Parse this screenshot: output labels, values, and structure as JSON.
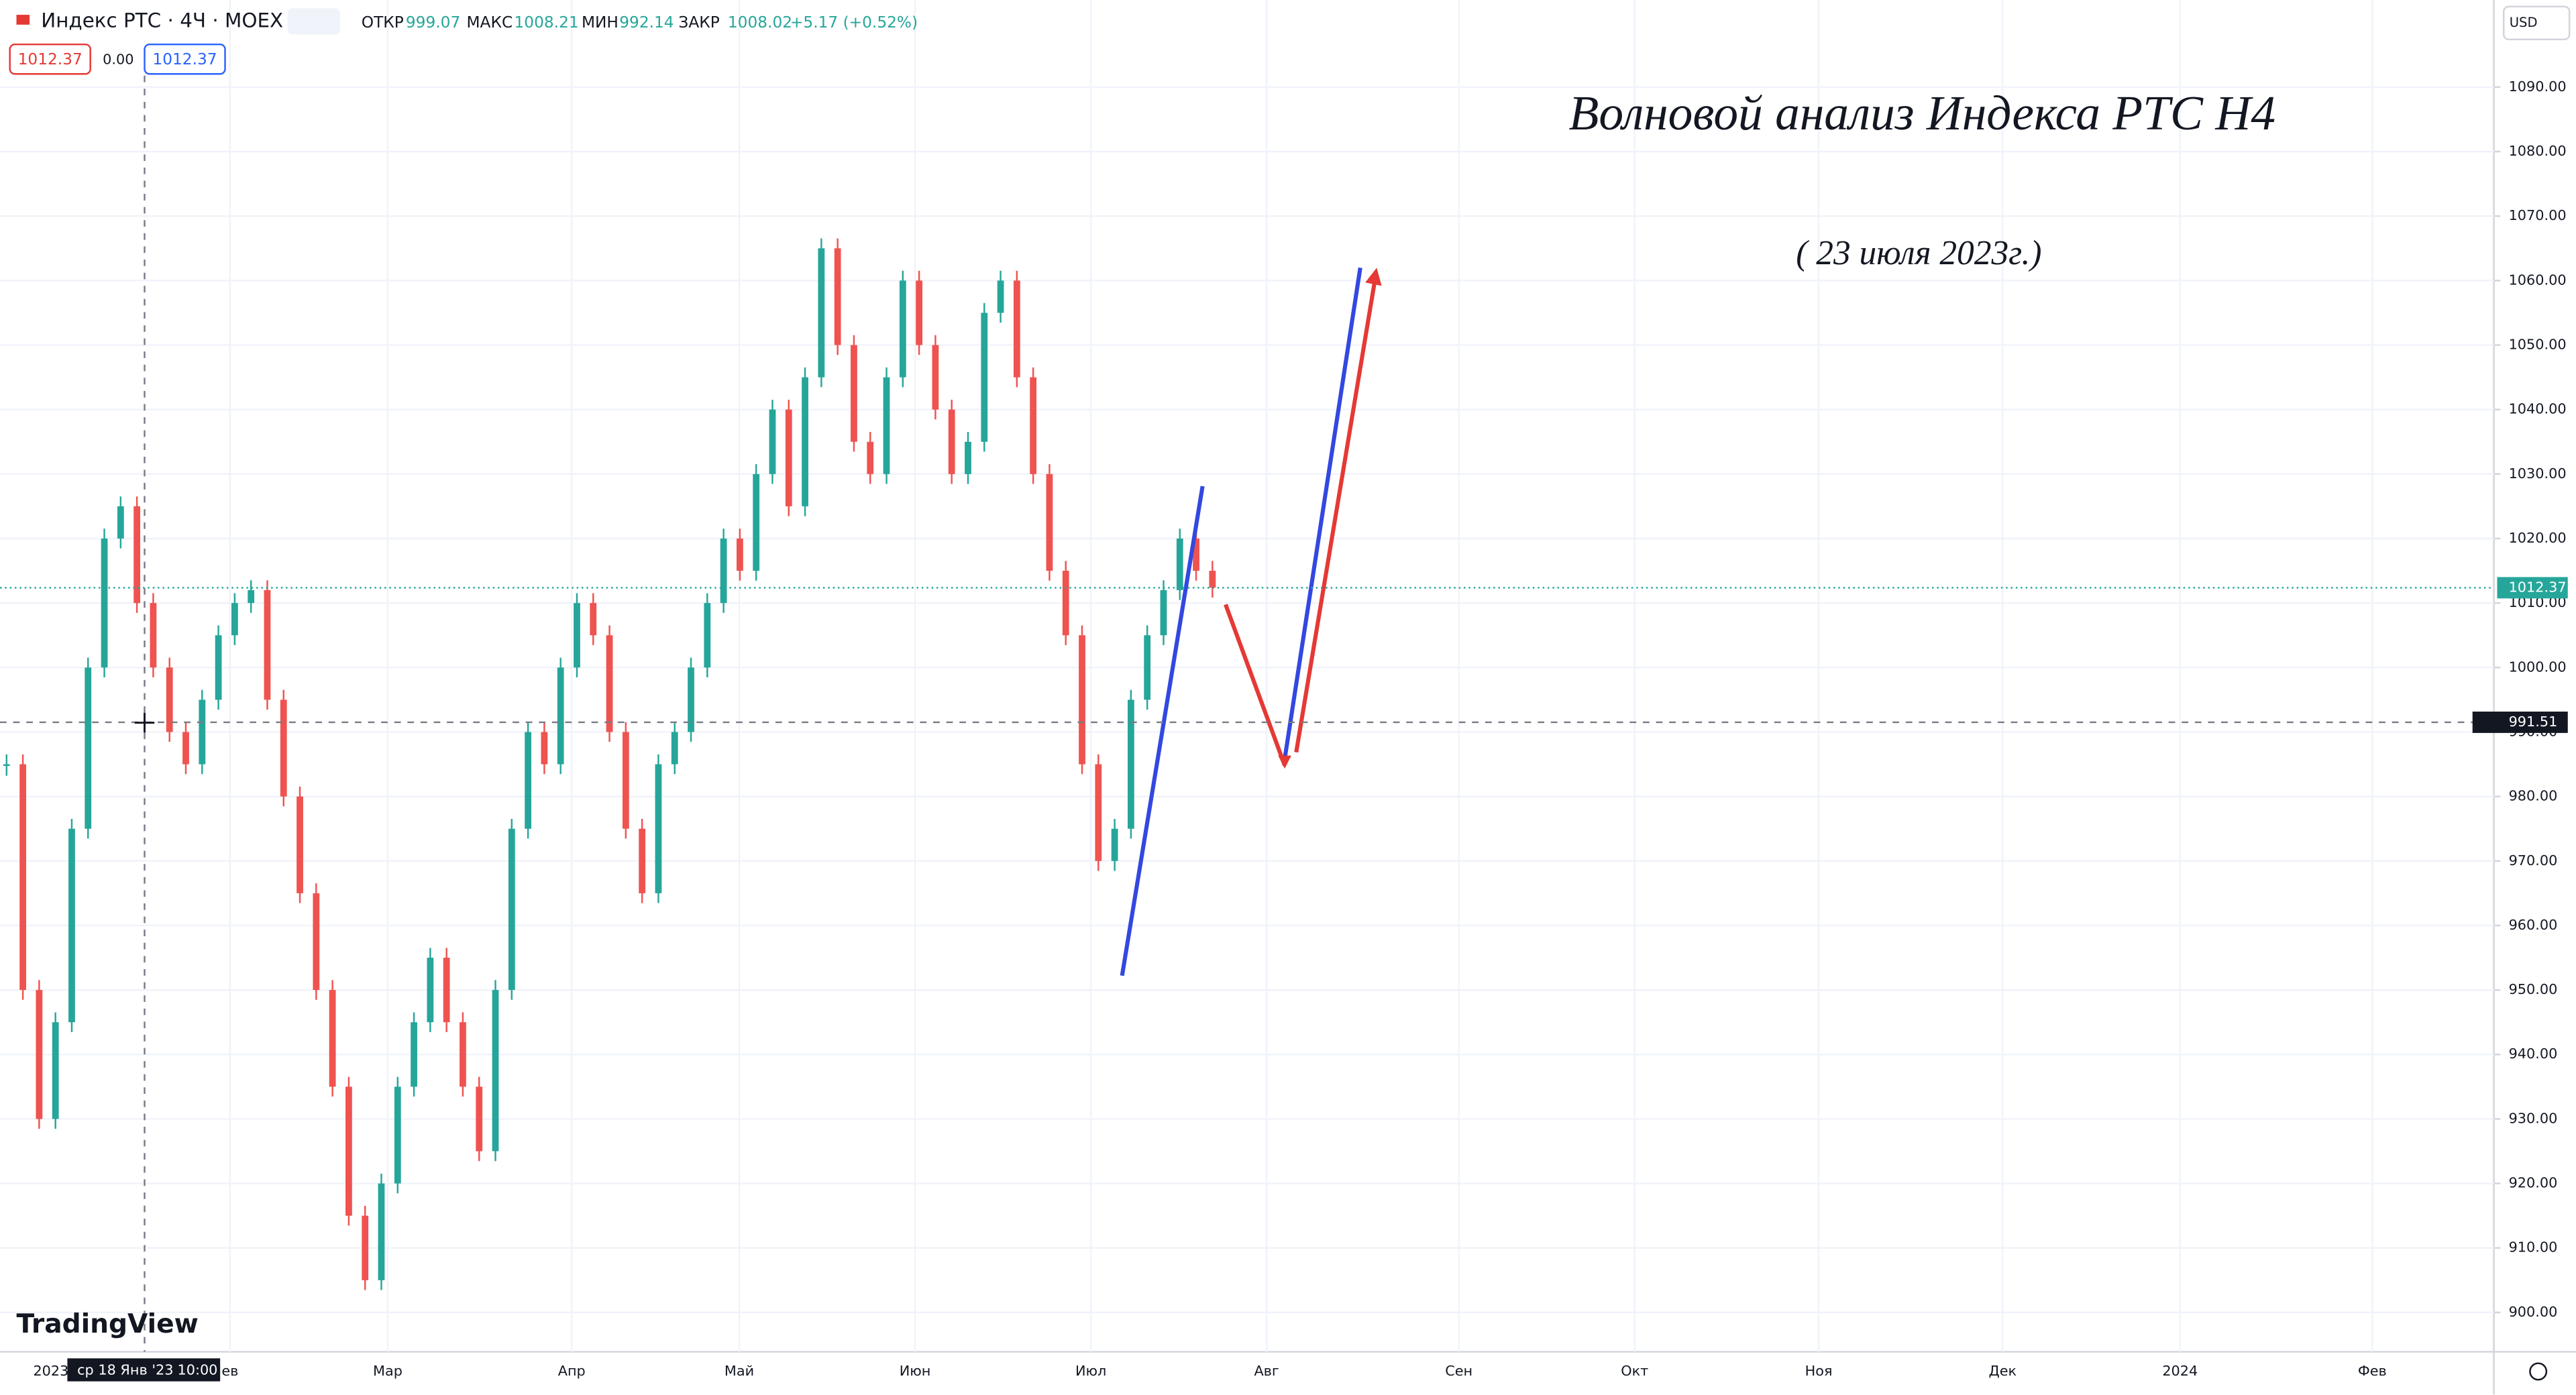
{
  "header": {
    "symbol": "Индекс РТС · 4Ч · MOEX",
    "open_label": "ОТКР",
    "open": "999.07",
    "high_label": "МАКС",
    "high": "1008.21",
    "low_label": "МИН",
    "low": "992.14",
    "close_label": "ЗАКР",
    "close": "1008.02",
    "change": "+5.17 (+0.52%)",
    "bid": "1012.37",
    "spread": "0.00",
    "ask": "1012.37",
    "currency": "USD",
    "logo": "TradingView"
  },
  "chart_data": {
    "type": "candlestick",
    "title": "Волновой анализ Индекса РТС Н4",
    "subtitle": "( 23 июля 2023г.)",
    "x_labels": [
      "2023",
      "ев",
      "Мар",
      "Апр",
      "Май",
      "Июн",
      "Июл",
      "Авг",
      "Сен",
      "Окт",
      "Ноя",
      "Дек",
      "2024",
      "Фев"
    ],
    "crosshair_date": "ср 18 Янв '23",
    "crosshair_clock": "10:00",
    "closes": [
      985,
      950,
      930,
      945,
      975,
      1000,
      1020,
      1025,
      1010,
      1000,
      990,
      985,
      995,
      1005,
      1010,
      1012,
      995,
      980,
      965,
      950,
      935,
      915,
      905,
      920,
      935,
      945,
      955,
      945,
      935,
      925,
      950,
      975,
      990,
      985,
      1000,
      1010,
      1005,
      990,
      975,
      965,
      985,
      990,
      1000,
      1010,
      1020,
      1015,
      1030,
      1040,
      1025,
      1045,
      1065,
      1050,
      1035,
      1030,
      1045,
      1060,
      1050,
      1040,
      1030,
      1035,
      1055,
      1060,
      1045,
      1030,
      1015,
      1005,
      985,
      970,
      975,
      995,
      1005,
      1012,
      1020,
      1015,
      1012.37
    ],
    "up_color": "#26a69a",
    "down_color": "#ef5350",
    "ylim": [
      893.9,
      1103.5
    ],
    "yticks": [
      {
        "value": 900,
        "label": "900.00"
      },
      {
        "value": 910,
        "label": "910.00"
      },
      {
        "value": 920,
        "label": "920.00"
      },
      {
        "value": 930,
        "label": "930.00"
      },
      {
        "value": 940,
        "label": "940.00"
      },
      {
        "value": 950,
        "label": "950.00"
      },
      {
        "value": 960,
        "label": "960.00"
      },
      {
        "value": 970,
        "label": "970.00"
      },
      {
        "value": 980,
        "label": "980.00"
      },
      {
        "value": 990,
        "label": "990.00"
      },
      {
        "value": 1000,
        "label": "1000.00"
      },
      {
        "value": 1010,
        "label": "1010.00"
      },
      {
        "value": 1020,
        "label": "1020.00"
      },
      {
        "value": 1030,
        "label": "1030.00"
      },
      {
        "value": 1040,
        "label": "1040.00"
      },
      {
        "value": 1050,
        "label": "1050.00"
      },
      {
        "value": 1060,
        "label": "1060.00"
      },
      {
        "value": 1070,
        "label": "1070.00"
      },
      {
        "value": 1080,
        "label": "1080.00"
      },
      {
        "value": 1090,
        "label": "1090.00"
      }
    ],
    "last_price": 1012.37,
    "crosshair_price": 991.51,
    "grid": true
  }
}
